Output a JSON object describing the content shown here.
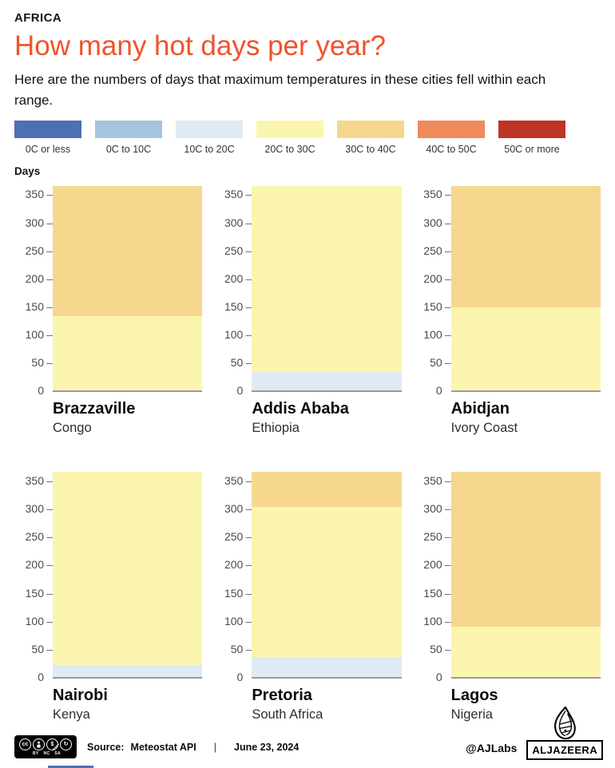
{
  "header": {
    "kicker": "AFRICA",
    "title": "How many hot days per year?",
    "subtitle": "Here are the numbers of days that maximum temperatures in these cities fell within each range."
  },
  "legend": {
    "items": [
      {
        "label": "0C or less",
        "color": "#4E6FB2"
      },
      {
        "label": "0C to 10C",
        "color": "#A5C4DF"
      },
      {
        "label": "10C to 20C",
        "color": "#DEEBF4"
      },
      {
        "label": "20C to 30C",
        "color": "#FBF5B0"
      },
      {
        "label": "30C to 40C",
        "color": "#F5D88E"
      },
      {
        "label": "40C to 50C",
        "color": "#EE8A5B"
      },
      {
        "label": "50C or more",
        "color": "#BE3425"
      }
    ]
  },
  "axis": {
    "unit_label": "Days",
    "ticks": [
      350,
      300,
      250,
      200,
      150,
      100,
      50,
      0
    ]
  },
  "chart_data": {
    "type": "bar",
    "stacked": true,
    "title": "How many hot days per year?",
    "ylabel": "Days",
    "ylim": [
      0,
      367
    ],
    "grid": false,
    "legend_position": "top",
    "categories": [
      "Brazzaville",
      "Addis Ababa",
      "Abidjan",
      "Nairobi",
      "Pretoria",
      "Lagos"
    ],
    "charts": [
      {
        "city": "Brazzaville",
        "country": "Congo",
        "segments": [
          {
            "range": "20C to 30C",
            "days": 133
          },
          {
            "range": "30C to 40C",
            "days": 232
          }
        ]
      },
      {
        "city": "Addis Ababa",
        "country": "Ethiopia",
        "segments": [
          {
            "range": "10C to 20C",
            "days": 35
          },
          {
            "range": "20C to 30C",
            "days": 330
          }
        ]
      },
      {
        "city": "Abidjan",
        "country": "Ivory Coast",
        "segments": [
          {
            "range": "20C to 30C",
            "days": 149
          },
          {
            "range": "30C to 40C",
            "days": 216
          }
        ]
      },
      {
        "city": "Nairobi",
        "country": "Kenya",
        "segments": [
          {
            "range": "10C to 20C",
            "days": 22
          },
          {
            "range": "20C to 30C",
            "days": 343
          }
        ]
      },
      {
        "city": "Pretoria",
        "country": "South Africa",
        "segments": [
          {
            "range": "10C to 20C",
            "days": 36
          },
          {
            "range": "20C to 30C",
            "days": 267
          },
          {
            "range": "30C to 40C",
            "days": 62
          }
        ]
      },
      {
        "city": "Lagos",
        "country": "Nigeria",
        "segments": [
          {
            "range": "20C to 30C",
            "days": 90
          },
          {
            "range": "30C to 40C",
            "days": 275
          }
        ]
      }
    ]
  },
  "footer": {
    "cc_label": "cc",
    "license_labels": [
      "BY",
      "NC",
      "SA"
    ],
    "source_label": "Source:",
    "source_value": "Meteostat API",
    "separator": "|",
    "date": "June 23, 2024",
    "credit": "@AJLabs",
    "brand": "ALJAZEERA"
  },
  "colors": {
    "title": "#F0532C",
    "axis_line": "#9A9A9A",
    "tick_text": "#4A4A4A",
    "bottom_fragment": "#4E6FB2"
  }
}
